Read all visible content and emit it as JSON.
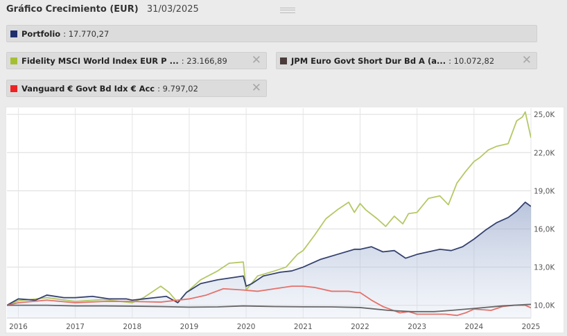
{
  "header": {
    "title": "Gráfico Crecimiento (EUR)",
    "date": "31/03/2025"
  },
  "legend": [
    {
      "name": "Portfolio",
      "value": ": 17.770,27",
      "color": "#1f2f6e",
      "closable": false
    },
    {
      "name": "Fidelity MSCI World Index EUR P ...",
      "value": ": 23.166,89",
      "color": "#a5bf32",
      "closable": true
    },
    {
      "name": "JPM Euro Govt Short Dur Bd A (a...",
      "value": ": 10.072,82",
      "color": "#4b3b3b",
      "closable": true
    },
    {
      "name": "Vanguard € Govt Bd Idx € Acc",
      "value": ": 9.797,02",
      "color": "#ee2222",
      "closable": true
    }
  ],
  "close_icon": "close-icon",
  "chart_data": {
    "type": "line",
    "x_unit": "year",
    "xlim": [
      2015.8,
      2025.0
    ],
    "ylim": [
      9000,
      25500
    ],
    "y_ticks": [
      10000,
      13000,
      16000,
      19000,
      22000,
      25000
    ],
    "y_tick_labels": [
      "10,0K",
      "13,0K",
      "16,0K",
      "19,0K",
      "22,0K",
      "25,0K"
    ],
    "x_ticks": [
      2016,
      2017,
      2018,
      2019,
      2020,
      2021,
      2022,
      2023,
      2024,
      2025
    ],
    "x_tick_labels": [
      "2016",
      "2017",
      "2018",
      "2019",
      "2020",
      "2021",
      "2022",
      "2023",
      "2024",
      "2025"
    ],
    "grid": true,
    "series": [
      {
        "name": "Fidelity MSCI World Index EUR P ...",
        "color": "#b4c864",
        "x": [
          2015.8,
          2016.0,
          2016.5,
          2017.0,
          2017.5,
          2018.0,
          2018.2,
          2018.5,
          2018.65,
          2018.8,
          2018.95,
          2019.2,
          2019.5,
          2019.7,
          2019.95,
          2020.0,
          2020.2,
          2020.5,
          2020.7,
          2020.9,
          2021.0,
          2021.2,
          2021.4,
          2021.6,
          2021.8,
          2021.9,
          2022.0,
          2022.1,
          2022.3,
          2022.45,
          2022.6,
          2022.75,
          2022.85,
          2023.0,
          2023.2,
          2023.4,
          2023.55,
          2023.7,
          2023.85,
          2024.0,
          2024.1,
          2024.25,
          2024.4,
          2024.6,
          2024.75,
          2024.85,
          2024.9,
          2025.0
        ],
        "y": [
          10000,
          10350,
          10600,
          10300,
          10450,
          10200,
          10600,
          11500,
          11000,
          10200,
          11000,
          12000,
          12700,
          13300,
          13400,
          11200,
          12300,
          12700,
          13000,
          14000,
          14300,
          15500,
          16800,
          17500,
          18100,
          17300,
          18000,
          17500,
          16800,
          16200,
          17000,
          16400,
          17200,
          17300,
          18400,
          18600,
          17900,
          19600,
          20500,
          21300,
          21600,
          22200,
          22500,
          22700,
          24500,
          24800,
          25200,
          23166.89
        ]
      },
      {
        "name": "Portfolio",
        "color": "#34416e",
        "fill": true,
        "x": [
          2015.8,
          2016.0,
          2016.3,
          2016.5,
          2016.8,
          2017.0,
          2017.3,
          2017.6,
          2017.9,
          2018.0,
          2018.2,
          2018.4,
          2018.6,
          2018.8,
          2018.95,
          2019.2,
          2019.5,
          2019.8,
          2019.95,
          2020.0,
          2020.1,
          2020.3,
          2020.6,
          2020.8,
          2021.0,
          2021.3,
          2021.6,
          2021.9,
          2022.0,
          2022.2,
          2022.4,
          2022.6,
          2022.8,
          2023.0,
          2023.2,
          2023.4,
          2023.6,
          2023.8,
          2024.0,
          2024.2,
          2024.4,
          2024.6,
          2024.75,
          2024.9,
          2025.0
        ],
        "y": [
          10000,
          10500,
          10400,
          10800,
          10600,
          10600,
          10700,
          10500,
          10500,
          10400,
          10500,
          10600,
          10700,
          10200,
          11000,
          11700,
          12000,
          12200,
          12300,
          11500,
          11700,
          12300,
          12600,
          12700,
          13000,
          13600,
          14000,
          14400,
          14400,
          14600,
          14200,
          14300,
          13700,
          14000,
          14200,
          14400,
          14300,
          14600,
          15200,
          15900,
          16500,
          16900,
          17400,
          18100,
          17770.27
        ]
      },
      {
        "name": "Vanguard € Govt Bd Idx € Acc",
        "color": "#e4716a",
        "x": [
          2015.8,
          2016.0,
          2016.5,
          2017.0,
          2017.5,
          2018.0,
          2018.5,
          2019.0,
          2019.3,
          2019.6,
          2019.95,
          2020.2,
          2020.5,
          2020.8,
          2021.0,
          2021.2,
          2021.5,
          2021.8,
          2021.95,
          2022.0,
          2022.2,
          2022.4,
          2022.55,
          2022.7,
          2022.85,
          2023.0,
          2023.2,
          2023.5,
          2023.7,
          2023.85,
          2024.0,
          2024.3,
          2024.5,
          2024.7,
          2024.9,
          2025.0
        ],
        "y": [
          10000,
          10200,
          10400,
          10200,
          10300,
          10300,
          10250,
          10500,
          10800,
          11300,
          11200,
          11100,
          11300,
          11500,
          11500,
          11400,
          11100,
          11100,
          11000,
          11000,
          10400,
          9900,
          9650,
          9400,
          9500,
          9300,
          9300,
          9300,
          9200,
          9400,
          9700,
          9600,
          9900,
          10000,
          10000,
          9797.02
        ]
      },
      {
        "name": "JPM Euro Govt Short Dur Bd A (a...",
        "color": "#666666",
        "x": [
          2015.8,
          2016.0,
          2016.5,
          2017.0,
          2017.5,
          2018.0,
          2018.5,
          2019.0,
          2019.5,
          2019.95,
          2020.5,
          2021.0,
          2021.5,
          2022.0,
          2022.5,
          2022.9,
          2023.3,
          2023.6,
          2024.0,
          2024.5,
          2025.0
        ],
        "y": [
          10000,
          10000,
          10000,
          9950,
          9950,
          9930,
          9900,
          9850,
          9870,
          9950,
          9900,
          9880,
          9870,
          9820,
          9600,
          9500,
          9500,
          9600,
          9750,
          9950,
          10072.82
        ]
      }
    ]
  }
}
